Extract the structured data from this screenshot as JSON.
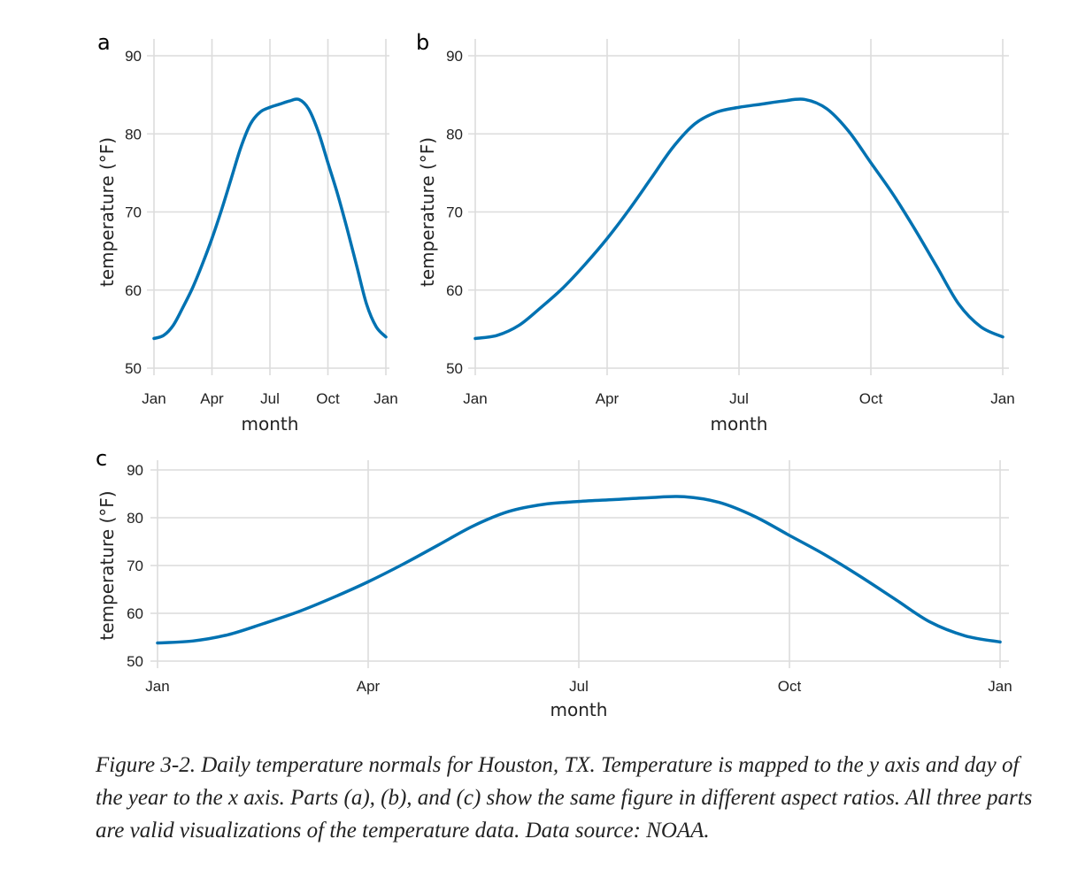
{
  "caption": "Figure 3-2. Daily temperature normals for Houston, TX. Temperature is mapped to the y axis and day of the year to the x axis. Parts (a), (b), and (c) show the same figure in different aspect ratios. All three parts are valid visualizations of the temperature data. Data source: NOAA.",
  "colors": {
    "line": "#0072b2",
    "grid": "#dcdcdc"
  },
  "chart_data": [
    {
      "type": "line",
      "panel": "a",
      "xlabel": "month",
      "ylabel": "temperature (°F)",
      "xticks": [
        "Jan",
        "Apr",
        "Jul",
        "Oct",
        "Jan"
      ],
      "yticks": [
        50,
        60,
        70,
        80,
        90
      ],
      "ylim": [
        50,
        90
      ],
      "grid": true
    },
    {
      "type": "line",
      "panel": "b",
      "xlabel": "month",
      "ylabel": "temperature (°F)",
      "xticks": [
        "Jan",
        "Apr",
        "Jul",
        "Oct",
        "Jan"
      ],
      "yticks": [
        50,
        60,
        70,
        80,
        90
      ],
      "ylim": [
        50,
        90
      ],
      "grid": true
    },
    {
      "type": "line",
      "panel": "c",
      "xlabel": "month",
      "ylabel": "temperature (°F)",
      "xticks": [
        "Jan",
        "Apr",
        "Jul",
        "Oct",
        "Jan"
      ],
      "yticks": [
        50,
        60,
        70,
        80,
        90
      ],
      "ylim": [
        50,
        90
      ],
      "grid": true
    }
  ],
  "series_shared": {
    "x_month": [
      1,
      1.5,
      2,
      2.5,
      3,
      3.5,
      4,
      4.5,
      5,
      5.5,
      6,
      6.5,
      7,
      7.5,
      8,
      8.5,
      9,
      9.5,
      10,
      10.5,
      11,
      11.5,
      12,
      12.5,
      13
    ],
    "temperature_f": [
      53.8,
      54.2,
      55.5,
      57.8,
      60.3,
      63.3,
      66.6,
      70.3,
      74.3,
      78.3,
      81.3,
      82.8,
      83.4,
      83.8,
      84.2,
      84.4,
      83.2,
      80.3,
      76.3,
      72.3,
      67.8,
      63.0,
      58.2,
      55.3,
      54.0
    ]
  }
}
